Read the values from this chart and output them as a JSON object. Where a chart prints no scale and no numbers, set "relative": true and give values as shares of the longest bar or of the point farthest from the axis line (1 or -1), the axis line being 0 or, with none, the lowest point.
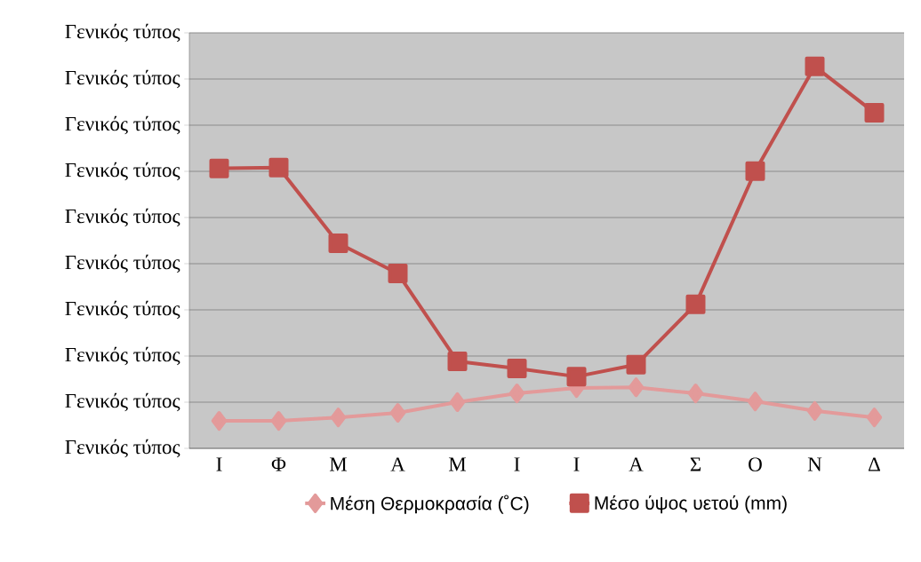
{
  "chart_data": {
    "type": "line",
    "relative": true,
    "categories": [
      "Ι",
      "Φ",
      "Μ",
      "Α",
      "Μ",
      "Ι",
      "Ι",
      "Α",
      "Σ",
      "Ο",
      "Ν",
      "Δ"
    ],
    "series": [
      {
        "name": "Μέση Θερμοκρασία (˚C)",
        "color": "#e39a9a",
        "marker": "diamond",
        "values": [
          0.072,
          0.072,
          0.081,
          0.093,
          0.121,
          0.144,
          0.158,
          0.16,
          0.144,
          0.123,
          0.098,
          0.081
        ]
      },
      {
        "name": "Μέσο ύψος υετού (mm)",
        "color": "#c0504d",
        "marker": "square",
        "values": [
          0.733,
          0.735,
          0.537,
          0.458,
          0.228,
          0.209,
          0.188,
          0.219,
          0.377,
          0.726,
          1,
          0.879
        ]
      }
    ],
    "annotations": [
      "Γενικός τύπος",
      "Γενικός τύπος",
      "Γενικός τύπος",
      "Γενικός τύπος",
      "Γενικός τύπος",
      "Γενικός τύπος",
      "Γενικός τύπος",
      "Γενικός τύπος",
      "Γενικός τύπος",
      "Γενικός τύπος"
    ],
    "ylim": [
      0,
      1.088
    ],
    "grid": "y",
    "legend": "bottom",
    "line_style": "solid"
  }
}
